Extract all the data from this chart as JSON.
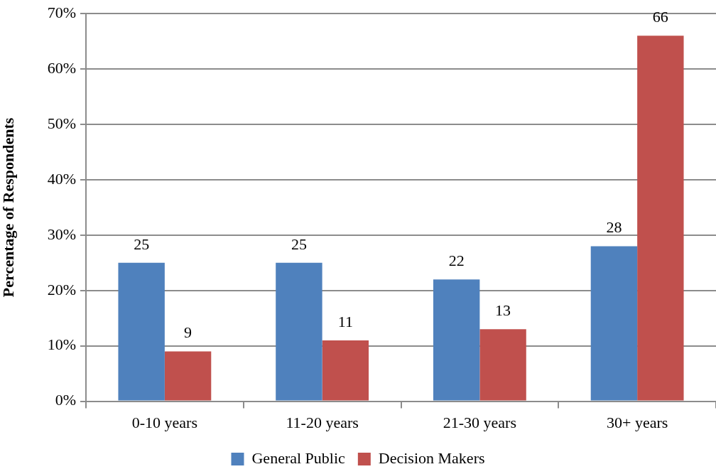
{
  "chart_data": {
    "type": "bar",
    "ylabel": "Percentage of Respondents",
    "categories": [
      "0-10 years",
      "11-20 years",
      "21-30 years",
      "30+ years"
    ],
    "series": [
      {
        "name": "General Public",
        "color": "#4f81bd",
        "values": [
          25,
          25,
          22,
          28
        ]
      },
      {
        "name": "Decision Makers",
        "color": "#c0504d",
        "values": [
          9,
          11,
          13,
          66
        ]
      }
    ],
    "ylim": [
      0,
      70
    ],
    "yticks": [
      {
        "value": 0,
        "label": "0%"
      },
      {
        "value": 10,
        "label": "10%"
      },
      {
        "value": 20,
        "label": "20%"
      },
      {
        "value": 30,
        "label": "30%"
      },
      {
        "value": 40,
        "label": "40%"
      },
      {
        "value": 50,
        "label": "50%"
      },
      {
        "value": 60,
        "label": "60%"
      },
      {
        "value": 70,
        "label": "70%"
      }
    ],
    "grid": "y",
    "legend": "bottom",
    "data_labels": true
  }
}
